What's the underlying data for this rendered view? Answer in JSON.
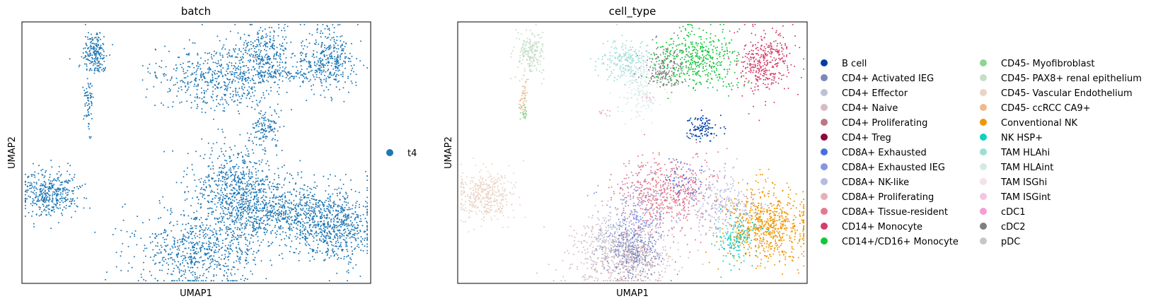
{
  "chart_data": [
    {
      "type": "scatter",
      "title": "batch",
      "xlabel": "UMAP1",
      "ylabel": "UMAP2",
      "grid": false,
      "legend_position": "right",
      "series": [
        {
          "name": "t4",
          "color": "#1f77b4"
        }
      ],
      "clusters": [
        {
          "group": "t4",
          "center": [
            0.21,
            0.12
          ],
          "spread": [
            0.018,
            0.045
          ],
          "n": 200
        },
        {
          "group": "t4",
          "center": [
            0.19,
            0.3
          ],
          "spread": [
            0.006,
            0.06
          ],
          "n": 70
        },
        {
          "group": "t4",
          "center": [
            0.56,
            0.22
          ],
          "spread": [
            0.085,
            0.06
          ],
          "n": 500
        },
        {
          "group": "t4",
          "center": [
            0.69,
            0.13
          ],
          "spread": [
            0.05,
            0.06
          ],
          "n": 350
        },
        {
          "group": "t4",
          "center": [
            0.88,
            0.15
          ],
          "spread": [
            0.04,
            0.06
          ],
          "n": 350
        },
        {
          "group": "t4",
          "center": [
            0.77,
            0.2
          ],
          "spread": [
            0.06,
            0.012
          ],
          "n": 90
        },
        {
          "group": "t4",
          "center": [
            0.7,
            0.4
          ],
          "spread": [
            0.02,
            0.03
          ],
          "n": 110
        },
        {
          "group": "t4",
          "center": [
            0.08,
            0.66
          ],
          "spread": [
            0.04,
            0.045
          ],
          "n": 400
        },
        {
          "group": "t4",
          "center": [
            0.62,
            0.65
          ],
          "spread": [
            0.07,
            0.09
          ],
          "n": 800
        },
        {
          "group": "t4",
          "center": [
            0.51,
            0.87
          ],
          "spread": [
            0.09,
            0.07
          ],
          "n": 700
        },
        {
          "group": "t4",
          "center": [
            0.75,
            0.72
          ],
          "spread": [
            0.07,
            0.05
          ],
          "n": 450
        },
        {
          "group": "t4",
          "center": [
            0.89,
            0.78
          ],
          "spread": [
            0.06,
            0.07
          ],
          "n": 700
        }
      ]
    },
    {
      "type": "scatter",
      "title": "cell_type",
      "xlabel": "UMAP1",
      "ylabel": "UMAP2",
      "grid": false,
      "legend_position": "right",
      "series": [
        {
          "name": "B cell",
          "color": "#023fa5"
        },
        {
          "name": "CD4+ Activated IEG",
          "color": "#7d87b9"
        },
        {
          "name": "CD4+ Effector",
          "color": "#bec1d4"
        },
        {
          "name": "CD4+ Naive",
          "color": "#d6bcc0"
        },
        {
          "name": "CD4+ Proliferating",
          "color": "#bb7784"
        },
        {
          "name": "CD4+ Treg",
          "color": "#8e063b"
        },
        {
          "name": "CD8A+ Exhausted",
          "color": "#4a6fe3"
        },
        {
          "name": "CD8A+ Exhausted IEG",
          "color": "#8595e1"
        },
        {
          "name": "CD8A+ NK-like",
          "color": "#b5bbe3"
        },
        {
          "name": "CD8A+ Proliferating",
          "color": "#e6afb9"
        },
        {
          "name": "CD8A+ Tissue-resident",
          "color": "#e07b91"
        },
        {
          "name": "CD14+ Monocyte",
          "color": "#d33f6a"
        },
        {
          "name": "CD14+/CD16+ Monocyte",
          "color": "#11c638"
        },
        {
          "name": "CD45- Myofibroblast",
          "color": "#8dd593"
        },
        {
          "name": "CD45- PAX8+ renal epithelium",
          "color": "#c6dec7"
        },
        {
          "name": "CD45- Vascular Endothelium",
          "color": "#ead3c6"
        },
        {
          "name": "CD45- ccRCC CA9+",
          "color": "#f0b98d"
        },
        {
          "name": "Conventional NK",
          "color": "#ef9708"
        },
        {
          "name": "NK HSP+",
          "color": "#0fcfc0"
        },
        {
          "name": "TAM HLAhi",
          "color": "#9cded6"
        },
        {
          "name": "TAM HLAint",
          "color": "#d5eae7"
        },
        {
          "name": "TAM ISGhi",
          "color": "#f3e1eb"
        },
        {
          "name": "TAM ISGint",
          "color": "#f6c4e1"
        },
        {
          "name": "cDC1",
          "color": "#f79cd4"
        },
        {
          "name": "cDC2",
          "color": "#7f7f7f"
        },
        {
          "name": "pDC",
          "color": "#c7c7c7"
        }
      ],
      "clusters": [
        {
          "group": "CD45- PAX8+ renal epithelium",
          "center": [
            0.21,
            0.12
          ],
          "spread": [
            0.018,
            0.045
          ],
          "n": 200
        },
        {
          "group": "CD45- ccRCC CA9+",
          "center": [
            0.19,
            0.28
          ],
          "spread": [
            0.006,
            0.045
          ],
          "n": 40
        },
        {
          "group": "CD45- Myofibroblast",
          "center": [
            0.19,
            0.34
          ],
          "spread": [
            0.006,
            0.02
          ],
          "n": 25
        },
        {
          "group": "TAM HLAhi",
          "center": [
            0.48,
            0.15
          ],
          "spread": [
            0.035,
            0.04
          ],
          "n": 220
        },
        {
          "group": "TAM HLAint",
          "center": [
            0.52,
            0.27
          ],
          "spread": [
            0.03,
            0.05
          ],
          "n": 160
        },
        {
          "group": "cDC2",
          "center": [
            0.59,
            0.18
          ],
          "spread": [
            0.03,
            0.04
          ],
          "n": 180
        },
        {
          "group": "CD14+/CD16+ Monocyte",
          "center": [
            0.69,
            0.14
          ],
          "spread": [
            0.06,
            0.06
          ],
          "n": 420
        },
        {
          "group": "CD14+ Monocyte",
          "center": [
            0.88,
            0.15
          ],
          "spread": [
            0.04,
            0.06
          ],
          "n": 350
        },
        {
          "group": "B cell",
          "center": [
            0.7,
            0.41
          ],
          "spread": [
            0.02,
            0.025
          ],
          "n": 110
        },
        {
          "group": "CD45- Vascular Endothelium",
          "center": [
            0.08,
            0.66
          ],
          "spread": [
            0.04,
            0.045
          ],
          "n": 400
        },
        {
          "group": "CD8A+ Tissue-resident",
          "center": [
            0.6,
            0.66
          ],
          "spread": [
            0.07,
            0.07
          ],
          "n": 600
        },
        {
          "group": "CD8A+ Exhausted IEG",
          "center": [
            0.52,
            0.78
          ],
          "spread": [
            0.04,
            0.08
          ],
          "n": 250
        },
        {
          "group": "CD8A+ NK-like",
          "center": [
            0.76,
            0.7
          ],
          "spread": [
            0.05,
            0.06
          ],
          "n": 250
        },
        {
          "group": "CD8A+ Exhausted",
          "center": [
            0.64,
            0.6
          ],
          "spread": [
            0.03,
            0.04
          ],
          "n": 60
        },
        {
          "group": "CD4+ Activated IEG",
          "center": [
            0.5,
            0.88
          ],
          "spread": [
            0.04,
            0.05
          ],
          "n": 300
        },
        {
          "group": "CD4+ Naive",
          "center": [
            0.48,
            0.9
          ],
          "spread": [
            0.08,
            0.06
          ],
          "n": 500
        },
        {
          "group": "CD4+ Effector",
          "center": [
            0.43,
            0.82
          ],
          "spread": [
            0.03,
            0.06
          ],
          "n": 150
        },
        {
          "group": "Conventional NK",
          "center": [
            0.89,
            0.78
          ],
          "spread": [
            0.06,
            0.07
          ],
          "n": 700
        },
        {
          "group": "NK HSP+",
          "center": [
            0.8,
            0.83
          ],
          "spread": [
            0.03,
            0.05
          ],
          "n": 150
        },
        {
          "group": "cDC1",
          "center": [
            0.42,
            0.35
          ],
          "spread": [
            0.01,
            0.01
          ],
          "n": 10
        },
        {
          "group": "TAM ISGint",
          "center": [
            0.55,
            0.29
          ],
          "spread": [
            0.01,
            0.01
          ],
          "n": 15
        }
      ]
    }
  ]
}
